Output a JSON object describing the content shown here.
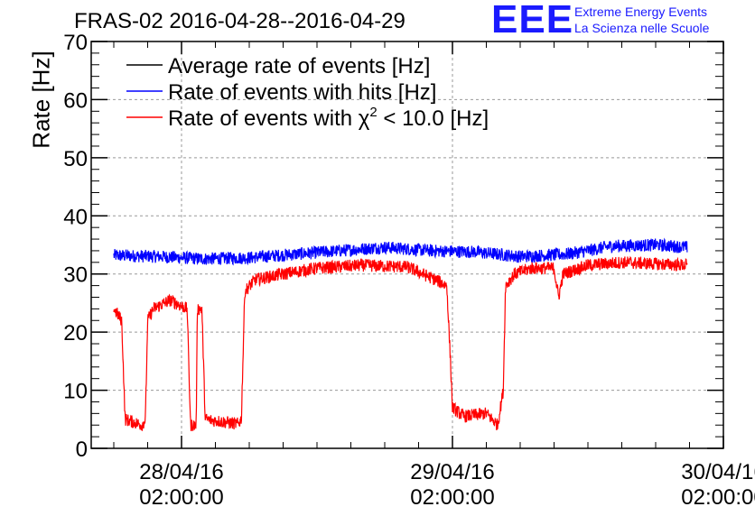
{
  "header": {
    "title": "FRAS-02 2016-04-28--2016-04-29",
    "logo": "EEE",
    "logo_line1": "Extreme Energy Events",
    "logo_line2": "La Scienza nelle Scuole"
  },
  "chart_data": {
    "type": "line",
    "title": "FRAS-02 2016-04-28--2016-04-29",
    "xlabel": "",
    "ylabel": "Rate [Hz]",
    "ylim": [
      0,
      70
    ],
    "xlim_hours": [
      -8,
      48
    ],
    "x_unit": "hours since 28/04/16 02:00:00",
    "y_ticks": [
      "0",
      "10",
      "20",
      "30",
      "40",
      "50",
      "60",
      "70"
    ],
    "x_ticks": [
      {
        "line1": "28/04/16",
        "line2": "02:00:00",
        "hour": 0
      },
      {
        "line1": "29/04/16",
        "line2": "02:00:00",
        "hour": 24
      },
      {
        "line1": "30/04/16",
        "line2": "02:00:00",
        "hour": 48
      }
    ],
    "grid": true,
    "legend_position": "top-left",
    "legend": [
      {
        "label": "Average rate of events [Hz]",
        "color": "#000000"
      },
      {
        "label": "Rate of events with hits [Hz]",
        "color": "#0000ff"
      },
      {
        "label_main": "Rate of events with χ",
        "label_sup": "2",
        "label_tail": " < 10.0 [Hz]",
        "color": "#ff0000"
      }
    ],
    "series": [
      {
        "name": "Rate of events with hits [Hz]",
        "color": "#0000ff",
        "noise": 1.0,
        "points": [
          [
            -6,
            33.2
          ],
          [
            -2,
            33
          ],
          [
            2,
            32.6
          ],
          [
            6,
            32.8
          ],
          [
            10,
            33.4
          ],
          [
            14,
            34
          ],
          [
            18,
            34.6
          ],
          [
            22,
            34
          ],
          [
            26,
            33.8
          ],
          [
            30,
            33
          ],
          [
            34,
            33.4
          ],
          [
            36,
            34
          ],
          [
            38,
            34.8
          ],
          [
            42,
            35
          ],
          [
            44.8,
            34.6
          ]
        ]
      },
      {
        "name": "Rate of events with χ2 < 10.0 [Hz]",
        "color": "#ff0000",
        "noise": 1.0,
        "points": [
          [
            -6,
            24
          ],
          [
            -5.3,
            22
          ],
          [
            -5,
            5
          ],
          [
            -3.5,
            4
          ],
          [
            -3.2,
            5
          ],
          [
            -3,
            22
          ],
          [
            -2.5,
            24
          ],
          [
            -1,
            25.5
          ],
          [
            0.5,
            24
          ],
          [
            0.8,
            4
          ],
          [
            1.3,
            4
          ],
          [
            1.4,
            24
          ],
          [
            1.8,
            24
          ],
          [
            2.1,
            5
          ],
          [
            5,
            4.2
          ],
          [
            5.3,
            5
          ],
          [
            5.6,
            27
          ],
          [
            6.5,
            29
          ],
          [
            9,
            30
          ],
          [
            12,
            31
          ],
          [
            16,
            31.5
          ],
          [
            20,
            31.2
          ],
          [
            22.5,
            29
          ],
          [
            23.5,
            28
          ],
          [
            23.8,
            16
          ],
          [
            24,
            7
          ],
          [
            25,
            5.5
          ],
          [
            27,
            6
          ],
          [
            28,
            4
          ],
          [
            28.5,
            10
          ],
          [
            28.7,
            28
          ],
          [
            29.5,
            30
          ],
          [
            31,
            31
          ],
          [
            33,
            31
          ],
          [
            33.4,
            26
          ],
          [
            33.8,
            30
          ],
          [
            36,
            31.5
          ],
          [
            39,
            32
          ],
          [
            44.8,
            31.5
          ]
        ]
      },
      {
        "name": "Average rate of events [Hz]",
        "color": "#000000",
        "noise": 0,
        "points": []
      }
    ]
  }
}
